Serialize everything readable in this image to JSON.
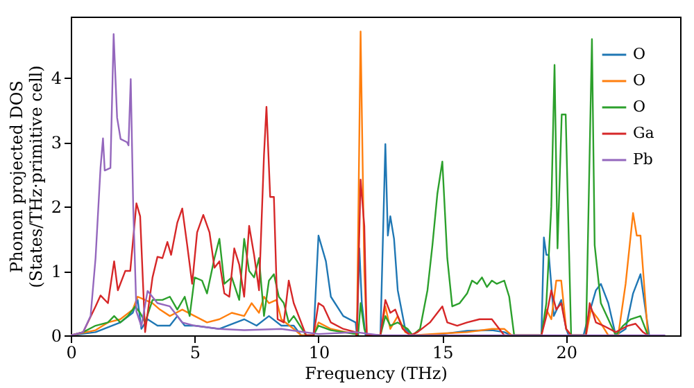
{
  "chart_data": {
    "type": "line",
    "xlabel": "Frequency (THz)",
    "ylabel": "Phonon projected DOS\n(States/THz·primitive cell)",
    "xlim": [
      0,
      24.6
    ],
    "ylim": [
      0,
      4.95
    ],
    "xticks": [
      0,
      5,
      10,
      15,
      20
    ],
    "yticks": [
      0,
      1,
      2,
      3,
      4
    ],
    "grid": false,
    "legend": "top right",
    "marker": "none",
    "line_style": "solid",
    "series": [
      {
        "name": "O",
        "color": "#1f77b4",
        "x": [
          0,
          1,
          2,
          2.5,
          2.7,
          2.85,
          3.1,
          3.5,
          4.0,
          4.3,
          4.6,
          5.0,
          6,
          7,
          7.5,
          8,
          8.5,
          9.0,
          9.3,
          9.8,
          10.0,
          10.3,
          10.5,
          11.0,
          11.5,
          11.55,
          11.65,
          11.75,
          11.9,
          12.5,
          12.7,
          12.8,
          12.9,
          13.05,
          13.2,
          13.5,
          13.8,
          14,
          15,
          16,
          17,
          17.5,
          17.8,
          19.0,
          19.1,
          19.2,
          19.3,
          19.5,
          19.8,
          20.0,
          20.1,
          20.7,
          20.9,
          21.2,
          21.4,
          21.7,
          22.0,
          22.4,
          22.7,
          23.0,
          23.2,
          23.35
        ],
        "values": [
          0,
          0.05,
          0.2,
          0.35,
          0.55,
          0.1,
          0.25,
          0.15,
          0.15,
          0.3,
          0.15,
          0.15,
          0.1,
          0.25,
          0.15,
          0.3,
          0.15,
          0.15,
          0,
          0,
          1.55,
          1.15,
          0.6,
          0.3,
          0.2,
          0,
          1.35,
          0.5,
          0,
          0,
          2.97,
          1.55,
          1.85,
          1.5,
          0.7,
          0.1,
          0,
          0,
          0.02,
          0.07,
          0.08,
          0.05,
          0,
          0,
          1.52,
          1.25,
          1.25,
          0.3,
          0.55,
          0.1,
          0,
          0,
          0.3,
          0.7,
          0.8,
          0.5,
          0,
          0.1,
          0.65,
          0.95,
          0.4,
          0
        ]
      },
      {
        "name": "O",
        "color": "#ff7f0e",
        "x": [
          0,
          1,
          1.5,
          2,
          2.5,
          2.7,
          3.0,
          3.3,
          3.6,
          4.0,
          4.5,
          5.0,
          5.5,
          6.0,
          6.5,
          7.0,
          7.3,
          7.6,
          7.8,
          8.0,
          8.3,
          8.5,
          9.0,
          9.3,
          9.8,
          10,
          10.5,
          11.5,
          11.55,
          11.7,
          11.85,
          11.95,
          12.5,
          12.7,
          12.9,
          13.2,
          13.5,
          13.8,
          15,
          16,
          17,
          17.5,
          17.8,
          19,
          19.2,
          19.4,
          19.6,
          19.8,
          20.0,
          20.2,
          20.8,
          21.0,
          21.3,
          21.7,
          22.1,
          22.4,
          22.7,
          22.85,
          23.0,
          23.3
        ],
        "values": [
          0,
          0.08,
          0.2,
          0.25,
          0.4,
          0.6,
          0.55,
          0.5,
          0.4,
          0.3,
          0.4,
          0.3,
          0.2,
          0.25,
          0.35,
          0.3,
          0.5,
          0.35,
          0.6,
          0.5,
          0.55,
          0.25,
          0.1,
          0,
          0,
          0.2,
          0.1,
          0.02,
          0,
          4.72,
          1.0,
          0,
          0,
          0.45,
          0.1,
          0.3,
          0.05,
          0,
          0.03,
          0.05,
          0.1,
          0.1,
          0,
          0,
          0.4,
          0.25,
          0.85,
          0.85,
          0.1,
          0,
          0,
          0.4,
          0.25,
          0,
          0,
          0.8,
          1.9,
          1.55,
          1.55,
          0
        ]
      },
      {
        "name": "O",
        "color": "#2ca02c",
        "x": [
          0,
          0.5,
          1.0,
          1.5,
          1.75,
          2.0,
          2.3,
          2.6,
          2.8,
          3.0,
          3.3,
          3.7,
          4.0,
          4.3,
          4.6,
          4.8,
          5.0,
          5.3,
          5.5,
          5.8,
          6.0,
          6.2,
          6.5,
          6.8,
          7.0,
          7.2,
          7.4,
          7.6,
          7.8,
          8.0,
          8.2,
          8.4,
          8.6,
          8.8,
          9.0,
          9.5,
          9.8,
          10.0,
          10.5,
          11.5,
          11.6,
          11.7,
          11.85,
          11.95,
          12.5,
          12.7,
          12.9,
          13.2,
          13.6,
          13.8,
          14.1,
          14.4,
          14.6,
          14.8,
          15.0,
          15.2,
          15.4,
          15.7,
          16.0,
          16.2,
          16.4,
          16.6,
          16.8,
          17.0,
          17.2,
          17.5,
          17.7,
          17.9,
          19.0,
          19.2,
          19.4,
          19.53,
          19.65,
          19.82,
          19.98,
          20.2,
          20.6,
          20.8,
          21.04,
          21.15,
          21.4,
          21.7,
          22.0,
          22.3,
          22.6,
          23.0,
          23.3
        ],
        "values": [
          0,
          0.05,
          0.15,
          0.2,
          0.3,
          0.2,
          0.3,
          0.45,
          0.35,
          0.2,
          0.55,
          0.55,
          0.6,
          0.4,
          0.6,
          0.3,
          0.9,
          0.85,
          0.65,
          1.2,
          1.5,
          0.8,
          0.9,
          0.55,
          1.5,
          1.0,
          0.9,
          1.2,
          0.3,
          0.85,
          0.95,
          0.6,
          0.5,
          0.2,
          0.3,
          0,
          0,
          0.15,
          0.08,
          0.02,
          0,
          0.5,
          0.1,
          0,
          0,
          0.3,
          0.15,
          0.2,
          0.1,
          0,
          0.1,
          0.7,
          1.4,
          2.2,
          2.7,
          1.2,
          0.45,
          0.5,
          0.65,
          0.85,
          0.8,
          0.9,
          0.75,
          0.85,
          0.8,
          0.85,
          0.6,
          0,
          0,
          0.5,
          2.0,
          4.2,
          1.35,
          3.43,
          3.43,
          0,
          0,
          0,
          4.6,
          1.4,
          0.5,
          0.25,
          0,
          0.15,
          0.25,
          0.3,
          0
        ]
      },
      {
        "name": "Ga",
        "color": "#d62728",
        "x": [
          0,
          0.5,
          1.0,
          1.2,
          1.5,
          1.75,
          1.9,
          2.2,
          2.4,
          2.65,
          2.8,
          3.0,
          3.3,
          3.5,
          3.7,
          3.9,
          4.05,
          4.3,
          4.5,
          4.7,
          4.9,
          5.1,
          5.35,
          5.6,
          5.8,
          6.0,
          6.2,
          6.4,
          6.6,
          6.8,
          7.0,
          7.2,
          7.4,
          7.6,
          7.8,
          7.9,
          8.05,
          8.2,
          8.35,
          8.6,
          8.8,
          9.0,
          9.2,
          9.5,
          9.8,
          10.0,
          10.2,
          10.5,
          11.0,
          11.5,
          11.55,
          11.7,
          11.85,
          11.95,
          12.5,
          12.7,
          12.9,
          13.1,
          13.4,
          13.7,
          14.0,
          14.5,
          15.0,
          15.2,
          15.6,
          16.0,
          16.5,
          17.0,
          17.3,
          17.5,
          19.0,
          19.2,
          19.4,
          19.6,
          19.8,
          20.0,
          20.2,
          20.8,
          20.95,
          21.2,
          21.5,
          22.0,
          22.5,
          22.8,
          23.1,
          23.3
        ],
        "values": [
          0,
          0.05,
          0.45,
          0.62,
          0.5,
          1.15,
          0.7,
          1.0,
          1.0,
          2.05,
          1.85,
          0.05,
          0.9,
          1.22,
          1.2,
          1.45,
          1.25,
          1.75,
          1.97,
          1.4,
          0.8,
          1.6,
          1.87,
          1.6,
          1.05,
          1.15,
          0.65,
          0.6,
          1.35,
          1.1,
          0.6,
          1.7,
          1.25,
          0.7,
          2.8,
          3.55,
          2.15,
          2.15,
          0.25,
          0.2,
          0.85,
          0.5,
          0.3,
          0,
          0,
          0.5,
          0.45,
          0.2,
          0.1,
          0.05,
          0,
          2.42,
          1.7,
          0,
          0,
          0.55,
          0.35,
          0.4,
          0.1,
          0,
          0.05,
          0.2,
          0.45,
          0.2,
          0.15,
          0.2,
          0.25,
          0.25,
          0.1,
          0,
          0,
          0.3,
          0.7,
          0.4,
          0.5,
          0.1,
          0,
          0,
          0.5,
          0.2,
          0.15,
          0.05,
          0.15,
          0.18,
          0.05,
          0
        ]
      },
      {
        "name": "Pb",
        "color": "#9467bd",
        "x": [
          0,
          0.5,
          0.8,
          1.0,
          1.2,
          1.3,
          1.37,
          1.6,
          1.73,
          1.87,
          2.01,
          2.27,
          2.33,
          2.42,
          2.52,
          2.65,
          2.85,
          3.1,
          3.5,
          4.0,
          4.5,
          5.0,
          6.0,
          7.0,
          8.5,
          10.0,
          11.5,
          12.5,
          24.0
        ],
        "values": [
          0,
          0.05,
          0.3,
          1.2,
          2.6,
          3.06,
          2.56,
          2.6,
          4.68,
          3.38,
          3.05,
          3.0,
          2.95,
          3.98,
          2.0,
          0.37,
          0.14,
          0.69,
          0.5,
          0.45,
          0.2,
          0.15,
          0.1,
          0.08,
          0.1,
          0.02,
          0.05,
          0,
          0
        ]
      }
    ]
  }
}
